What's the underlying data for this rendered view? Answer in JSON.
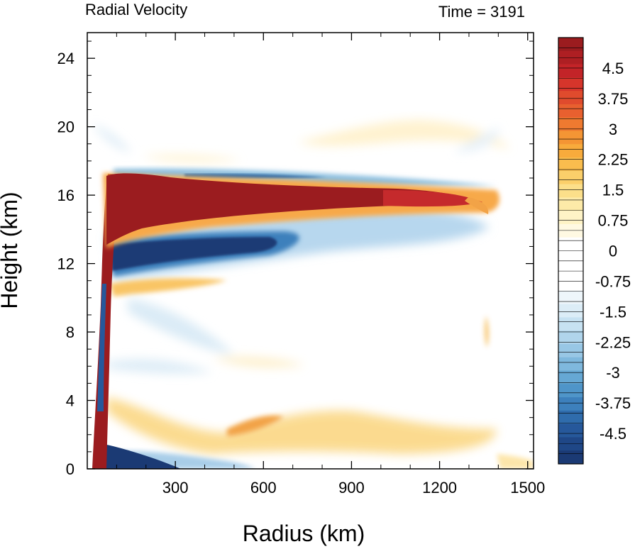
{
  "chart_data": {
    "type": "heatmap",
    "title_left": "Radial Velocity",
    "title_right": "Time = 3191",
    "xlabel": "Radius (km)",
    "ylabel": "Height (km)",
    "xlim": [
      0,
      1520
    ],
    "ylim": [
      0,
      25.5
    ],
    "xticks": [
      300,
      600,
      900,
      1200,
      1500
    ],
    "yticks": [
      0,
      4,
      8,
      12,
      16,
      20,
      24
    ],
    "colorbar": {
      "levels": [
        5.25,
        5.0,
        4.75,
        4.5,
        4.25,
        4.0,
        3.75,
        3.5,
        3.25,
        3.0,
        2.75,
        2.5,
        2.25,
        2.0,
        1.75,
        1.5,
        1.25,
        1.0,
        0.75,
        0.5,
        0.25,
        0,
        -0.25,
        -0.5,
        -0.75,
        -1.0,
        -1.25,
        -1.5,
        -1.75,
        -2.0,
        -2.25,
        -2.5,
        -2.75,
        -3.0,
        -3.25,
        -3.5,
        -3.75,
        -4.0,
        -4.25,
        -4.5,
        -4.75,
        -5.0,
        -5.25
      ],
      "labels": [
        "4.5",
        "3.75",
        "3",
        "2.25",
        "1.5",
        "0.75",
        "0",
        "-0.75",
        "-1.5",
        "-2.25",
        "-3",
        "-3.75",
        "-4.5"
      ],
      "label_values": [
        4.5,
        3.75,
        3,
        2.25,
        1.5,
        0.75,
        0,
        -0.75,
        -1.5,
        -2.25,
        -3,
        -3.75,
        -4.5
      ],
      "colors": [
        "#9b1c1f",
        "#ae1f23",
        "#c32428",
        "#d6352b",
        "#e04b2d",
        "#e8602f",
        "#ef7a30",
        "#f49534",
        "#f8ab3c",
        "#f9bd4e",
        "#fbcf6a",
        "#fcdf8a",
        "#fdeaa8",
        "#fef3c6",
        "#fff9e2",
        "#ffffff",
        "#ffffff",
        "#ffffff",
        "#ffffff",
        "#eef6fb",
        "#dcedf7",
        "#c7e2f2",
        "#b0d5ec",
        "#98c7e5",
        "#7fb8dd",
        "#66a8d4",
        "#4f95c9",
        "#3d80bc",
        "#2f6cac",
        "#26589b",
        "#1f4787",
        "#1b3a74"
      ],
      "vmin": -5.25,
      "vmax": 5.25
    },
    "features": [
      {
        "name": "upper-level outflow",
        "sign": "positive",
        "r": [
          80,
          1420
        ],
        "z_center": [
          15.4,
          15.7
        ],
        "peak": "> 5.25"
      },
      {
        "name": "inflow beneath outflow",
        "sign": "negative",
        "r": [
          90,
          850
        ],
        "z_center": 12.5,
        "peak": "< -5.25"
      },
      {
        "name": "thin layer above outflow",
        "sign": "negative",
        "r": [
          150,
          1000
        ],
        "z_center": 17.0,
        "peak": "-4.5"
      },
      {
        "name": "mid-level outflow",
        "sign": "positive",
        "r": [
          90,
          500
        ],
        "z_center": 10.7,
        "peak": "2.25"
      },
      {
        "name": "boundary-layer inflow",
        "sign": "negative",
        "r": [
          30,
          650
        ],
        "z_center": 0.5,
        "peak": "< -5.25"
      },
      {
        "name": "low-level outflow above boundary layer",
        "sign": "positive",
        "r": [
          30,
          1400
        ],
        "z_center": 2.2,
        "peak": "2.25"
      },
      {
        "name": "eyewall outflow column",
        "sign": "positive",
        "r": [
          30,
          90
        ],
        "z": [
          0.3,
          17
        ],
        "peak": "> 5.25"
      }
    ]
  }
}
